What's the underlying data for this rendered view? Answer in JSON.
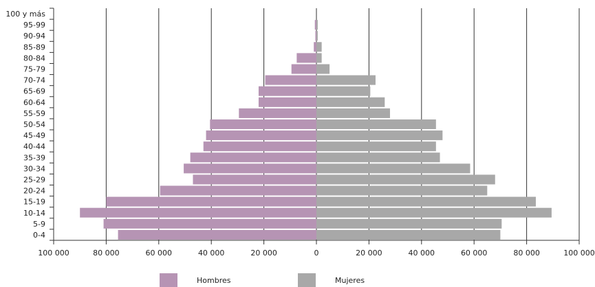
{
  "chart_data": {
    "type": "bar",
    "orientation": "horizontal-pyramid",
    "title": "",
    "xlabel": "",
    "ylabel": "",
    "categories": [
      "0-4",
      "5-9",
      "10-14",
      "15-19",
      "20-24",
      "25-29",
      "30-34",
      "35-39",
      "40-44",
      "45-49",
      "50-54",
      "55-59",
      "60-64",
      "65-69",
      "70-74",
      "75-79",
      "80-84",
      "85-89",
      "90-94",
      "95-99",
      "100 y más"
    ],
    "series": [
      {
        "name": "Hombres",
        "color": "#b694b4",
        "values": [
          75500,
          81000,
          90000,
          80000,
          59500,
          47000,
          50500,
          48000,
          43000,
          42000,
          40500,
          29500,
          22000,
          22000,
          19500,
          9500,
          7500,
          1000,
          400,
          600,
          0
        ]
      },
      {
        "name": "Mujeres",
        "color": "#a8a8a8",
        "values": [
          70000,
          70500,
          89500,
          83500,
          65000,
          68000,
          58500,
          47000,
          45500,
          48000,
          45500,
          28000,
          26000,
          20500,
          22500,
          5000,
          2000,
          2000,
          500,
          500,
          0
        ]
      }
    ],
    "xlim": [
      -100000,
      100000
    ],
    "x_ticks": [
      "100 000",
      "80 000",
      "60 000",
      "40 000",
      "20 000",
      "0",
      "20 000",
      "40 000",
      "60 000",
      "80 000",
      "100 000"
    ],
    "grid": true,
    "legend_position": "bottom"
  }
}
